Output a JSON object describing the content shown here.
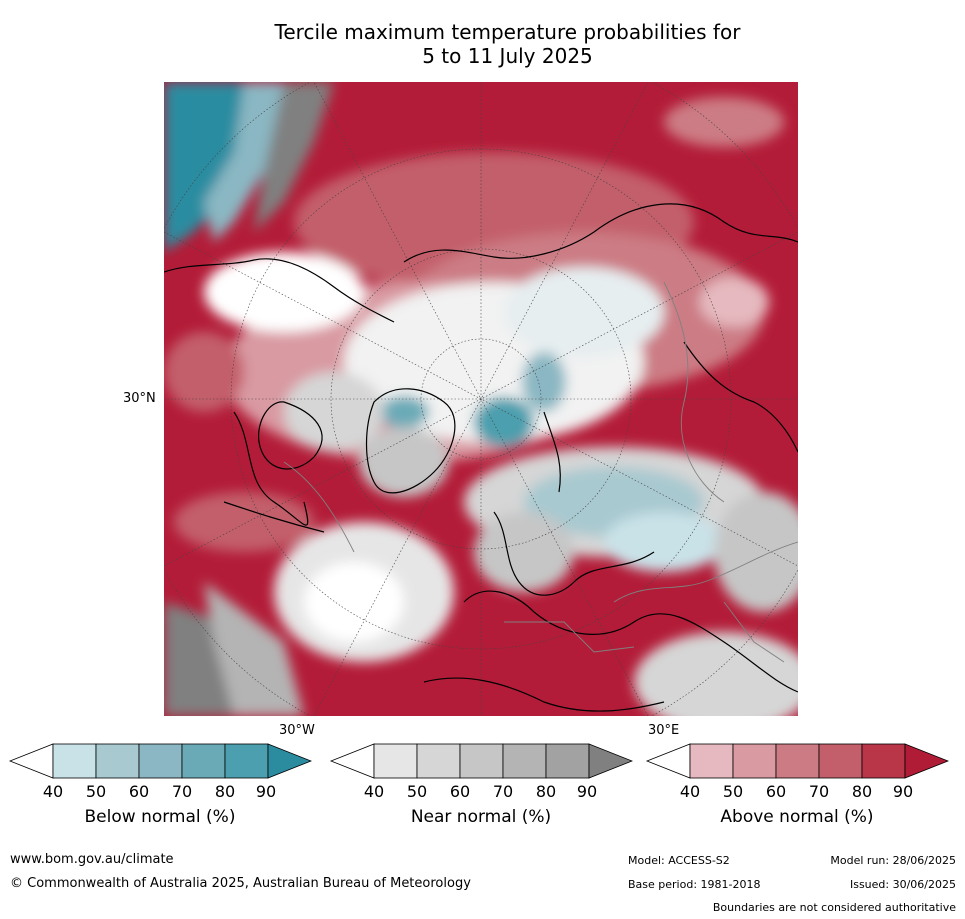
{
  "title_line1": "Tercile maximum temperature probabilities for",
  "title_line2": "5 to 11 July 2025",
  "map_labels": {
    "lat_30n": "30°N",
    "lon_30w": "30°W",
    "lon_30e": "30°E"
  },
  "legends": [
    {
      "name": "Below normal (%)",
      "ticks": [
        "40",
        "50",
        "60",
        "70",
        "80",
        "90"
      ],
      "colors": [
        "#ffffff",
        "#c9e2e8",
        "#a8c9d0",
        "#8ab7c3",
        "#6aaab7",
        "#4c9fae",
        "#2b8ca0"
      ]
    },
    {
      "name": "Near normal (%)",
      "ticks": [
        "40",
        "50",
        "60",
        "70",
        "80",
        "90"
      ],
      "colors": [
        "#ffffff",
        "#e6e6e6",
        "#d6d6d6",
        "#c6c6c6",
        "#b4b4b4",
        "#a2a2a2",
        "#808080"
      ]
    },
    {
      "name": "Above normal (%)",
      "ticks": [
        "40",
        "50",
        "60",
        "70",
        "80",
        "90"
      ],
      "colors": [
        "#ffffff",
        "#e5b9bf",
        "#d99aa2",
        "#cc7b84",
        "#c35f6b",
        "#b93649",
        "#b01c36"
      ]
    }
  ],
  "footer": {
    "website": "www.bom.gov.au/climate",
    "copyright": "© Commonwealth of Australia 2025, Australian Bureau of Meteorology",
    "model": "Model: ACCESS-S2",
    "base_period": "Base period: 1981-2018",
    "model_run": "Model run: 28/06/2025",
    "issued": "Issued: 30/06/2025",
    "boundaries": "Boundaries are not considered authoritative"
  }
}
